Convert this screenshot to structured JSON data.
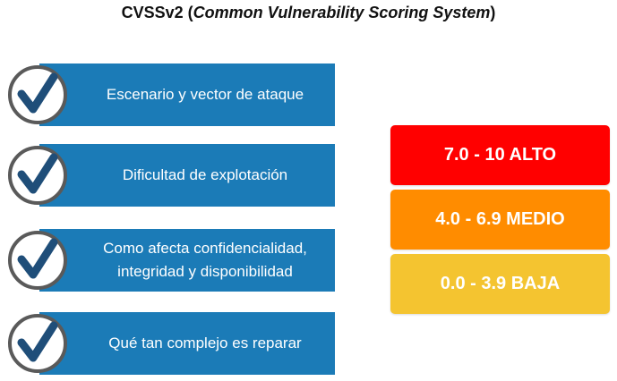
{
  "title": {
    "main": "CVSSv2 (",
    "italic": "Common Vulnerability Scoring System",
    "close": ")"
  },
  "criteria": [
    {
      "label": "Escenario y vector de ataque",
      "icon": "check-icon"
    },
    {
      "label": "Dificultad de explotación",
      "icon": "check-icon"
    },
    {
      "label": "Como afecta confidencialidad, integridad y disponibilidad",
      "icon": "check-icon"
    },
    {
      "label": "Qué tan complejo es reparar",
      "icon": "check-icon"
    }
  ],
  "severity_levels": [
    {
      "label": "7.0 - 10 ALTO",
      "color": "#ff0000"
    },
    {
      "label": "4.0 - 6.9 MEDIO",
      "color": "#ff8c00"
    },
    {
      "label": "0.0 - 3.9 BAJA",
      "color": "#f4c430"
    }
  ],
  "colors": {
    "bar": "#1b7bb7",
    "check_ring": "#5a5a5a",
    "check_mark": "#1f4e79"
  }
}
